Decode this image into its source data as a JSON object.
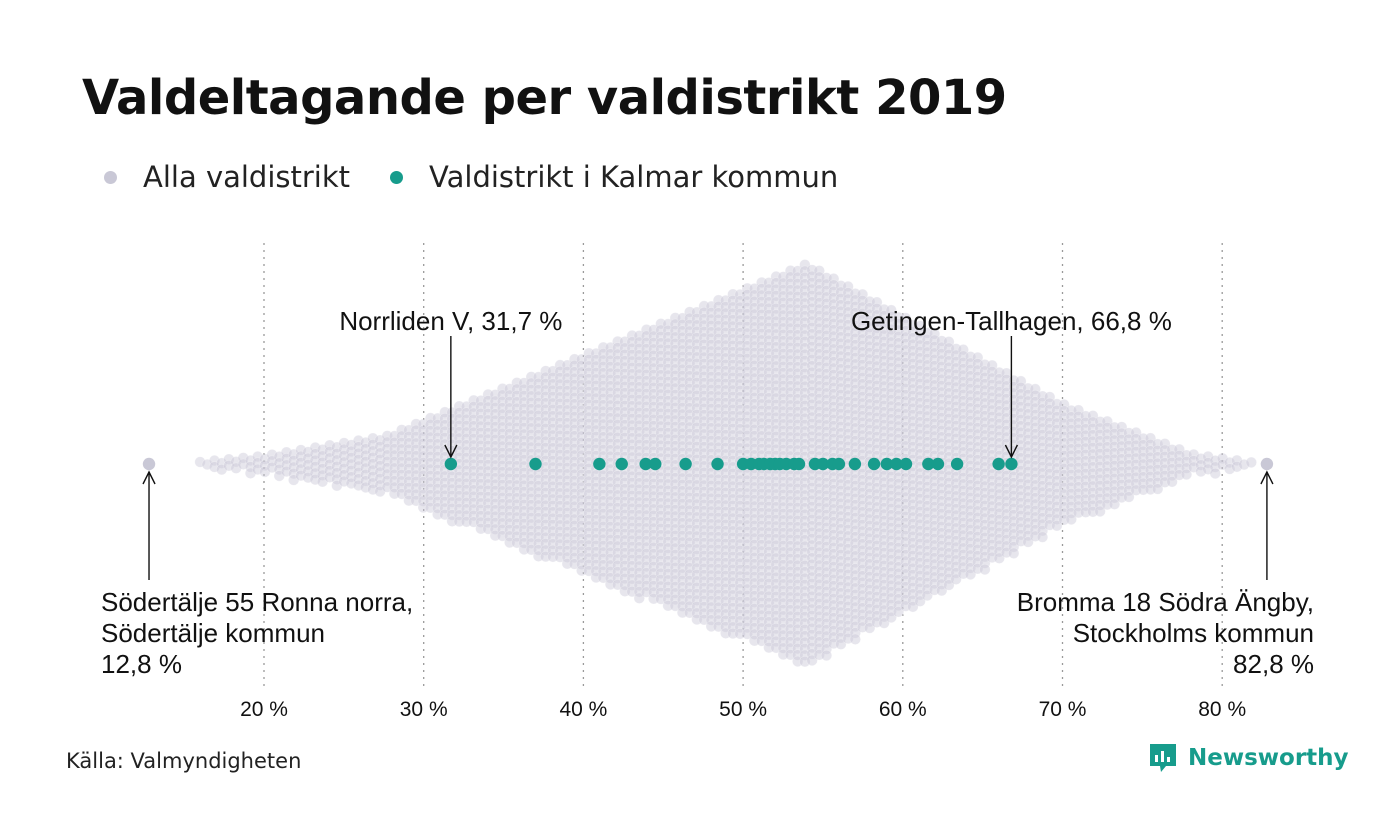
{
  "title": "Valdeltagande per valdistrikt 2019",
  "legend": {
    "all_label": "Alla valdistrikt",
    "kalmar_label": "Valdistrikt i Kalmar kommun"
  },
  "colors": {
    "all": "#c9c8d6",
    "kalmar": "#179c8c",
    "grid": "#9a9a9a",
    "text": "#111111",
    "brand": "#179c8c"
  },
  "source": "Källa: Valmyndigheten",
  "brand": {
    "name": "Newsworthy",
    "icon": "newsworthy-logo-icon"
  },
  "chart_data": {
    "type": "scatter",
    "subtype": "beeswarm",
    "x_ticks": [
      {
        "value": 20,
        "label": "20 %"
      },
      {
        "value": 30,
        "label": "30 %"
      },
      {
        "value": 40,
        "label": "40 %"
      },
      {
        "value": 50,
        "label": "50 %"
      },
      {
        "value": 60,
        "label": "60 %"
      },
      {
        "value": 70,
        "label": "70 %"
      },
      {
        "value": 80,
        "label": "80 %"
      }
    ],
    "xlim": [
      12.8,
      82.8
    ],
    "grid": "vertical dotted",
    "legend_position": "top-left",
    "series": [
      {
        "name": "Alla valdistrikt",
        "description_values": "dense distribution of all districts, concentrated between 40 and 70 percent",
        "values": [
          12.8,
          82.8
        ]
      },
      {
        "name": "Valdistrikt i Kalmar kommun",
        "values": [
          31.7,
          37.0,
          41.0,
          42.4,
          43.9,
          44.5,
          46.4,
          48.4,
          50.0,
          50.5,
          51.0,
          51.3,
          51.7,
          52.0,
          52.3,
          52.7,
          53.2,
          53.5,
          54.5,
          55.0,
          55.6,
          56.0,
          57.0,
          58.2,
          59.0,
          59.6,
          60.2,
          61.6,
          62.2,
          63.4,
          66.0,
          66.8
        ]
      }
    ],
    "annotations": [
      {
        "lines": [
          "Norrliden V, 31,7 %"
        ],
        "value": 31.7,
        "anchor": "top"
      },
      {
        "lines": [
          "Getingen-Tallhagen, 66,8 %"
        ],
        "value": 66.8,
        "anchor": "top"
      },
      {
        "lines": [
          "Södertälje 55 Ronna norra,",
          "Södertälje kommun",
          "12,8 %"
        ],
        "value": 12.8,
        "anchor": "bottom-left"
      },
      {
        "lines": [
          "Bromma 18 Södra Ängby,",
          "Stockholms kommun",
          "82,8 %"
        ],
        "value": 82.8,
        "anchor": "bottom-right"
      }
    ]
  }
}
